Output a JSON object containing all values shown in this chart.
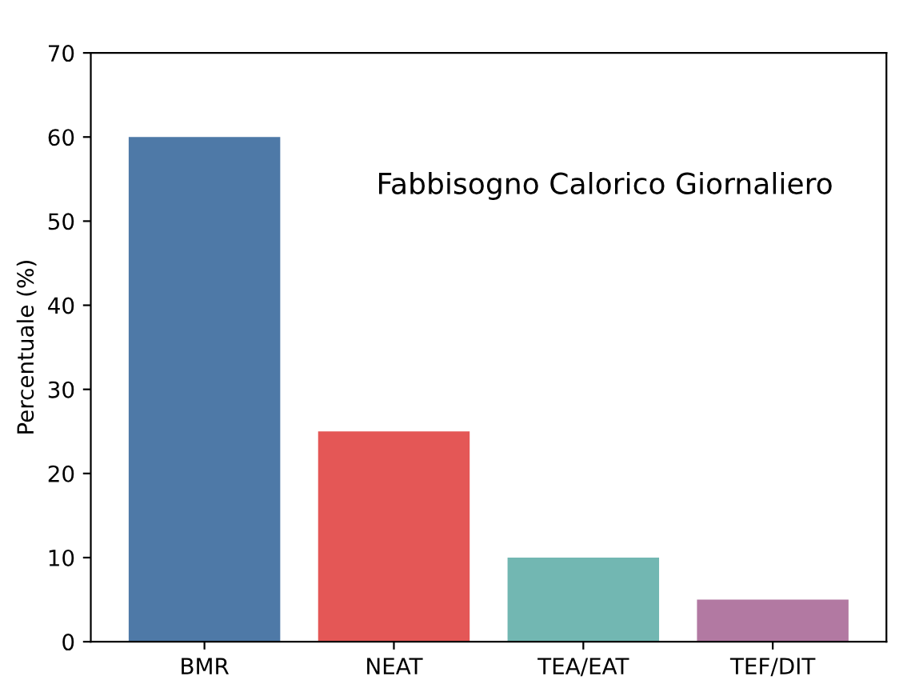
{
  "chart_data": {
    "type": "bar",
    "title": "Fabbisogno Calorico Giornaliero",
    "ylabel": "Percentuale (%)",
    "categories": [
      "BMR",
      "NEAT",
      "TEA/EAT",
      "TEF/DIT"
    ],
    "values": [
      60,
      25,
      10,
      5
    ],
    "colors": [
      "#4e79a7",
      "#e45756",
      "#72b7b2",
      "#b279a2"
    ],
    "ylim": [
      0,
      70
    ],
    "yticks": [
      0,
      10,
      20,
      30,
      40,
      50,
      60,
      70
    ],
    "grid": false
  }
}
